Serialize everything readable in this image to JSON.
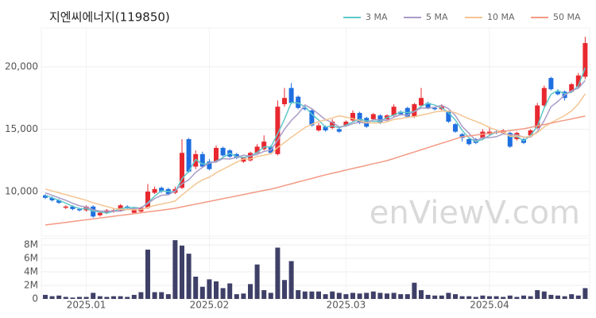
{
  "chart_data": [
    {
      "type": "candlestick",
      "title": "지엔씨에너지(119850)",
      "watermark": "enViewV.com",
      "up_color": "#e8282f",
      "down_color": "#1f6fe0",
      "grid": true,
      "ylim": [
        6430,
        23120
      ],
      "yticks": [
        {
          "value": 10000,
          "label": "10,000"
        },
        {
          "value": 15000,
          "label": "15,000"
        },
        {
          "value": 20000,
          "label": "20,000"
        }
      ],
      "open": [
        9700,
        9500,
        9300,
        8700,
        8800,
        8600,
        8500,
        8800,
        8100,
        8300,
        8400,
        8500,
        8800,
        8300,
        8400,
        8700,
        9900,
        10300,
        10200,
        9900,
        10300,
        14200,
        12000,
        13000,
        12400,
        12400,
        13500,
        13300,
        13000,
        12400,
        12500,
        13100,
        13400,
        13600,
        13000,
        17000,
        18300,
        17600,
        16700,
        16500,
        14900,
        15200,
        15100,
        15000,
        15300,
        15700,
        16300,
        15900,
        15800,
        16100,
        15800,
        16100,
        16400,
        16700,
        16000,
        16900,
        17100,
        16700,
        16600,
        16400,
        15400,
        14600,
        14200,
        14200,
        14300,
        14600,
        14800,
        14700,
        14700,
        14200,
        14200,
        14500,
        15100,
        16900,
        19100,
        18000,
        18000,
        18000,
        18400,
        19200
      ],
      "high": [
        9800,
        9600,
        9400,
        8900,
        8900,
        8700,
        8900,
        8900,
        8400,
        8600,
        8600,
        9000,
        8900,
        8700,
        8800,
        10600,
        10400,
        10400,
        10300,
        10400,
        14200,
        14300,
        13300,
        13200,
        12600,
        13700,
        13600,
        13400,
        13100,
        12800,
        13200,
        13800,
        14500,
        13700,
        17300,
        18300,
        18700,
        17700,
        16900,
        16600,
        15500,
        15300,
        15800,
        15100,
        15700,
        16500,
        16400,
        16000,
        16300,
        16200,
        16200,
        17000,
        16500,
        16800,
        17100,
        18300,
        17200,
        16800,
        17000,
        16500,
        15500,
        14700,
        14300,
        14300,
        15000,
        15200,
        14900,
        15000,
        14800,
        14800,
        14300,
        15000,
        17100,
        18500,
        19200,
        18200,
        18100,
        18700,
        19500,
        22400
      ],
      "low": [
        9400,
        9200,
        9000,
        8600,
        8500,
        8400,
        8400,
        7900,
        8000,
        8200,
        8300,
        8400,
        8600,
        8200,
        8300,
        8600,
        9800,
        9900,
        9700,
        9800,
        10200,
        11500,
        11800,
        11900,
        11700,
        12300,
        12800,
        12700,
        12600,
        12300,
        12400,
        13000,
        13300,
        13000,
        12900,
        16800,
        17000,
        16600,
        16500,
        15200,
        14800,
        14800,
        15000,
        14700,
        15200,
        15600,
        15400,
        15100,
        15700,
        15400,
        15700,
        16000,
        16100,
        15900,
        15900,
        16800,
        16600,
        16500,
        16500,
        15500,
        14700,
        14000,
        13700,
        13800,
        14200,
        14500,
        14600,
        14600,
        13500,
        14100,
        13800,
        14400,
        15000,
        16800,
        18100,
        17700,
        17300,
        17900,
        18300,
        19000
      ],
      "close": [
        9500,
        9300,
        9100,
        8800,
        8600,
        8500,
        8800,
        8000,
        8300,
        8500,
        8500,
        8900,
        8700,
        8600,
        8700,
        10000,
        10200,
        10000,
        9800,
        10200,
        13100,
        11600,
        13000,
        12000,
        11800,
        13500,
        12900,
        12800,
        12700,
        12700,
        13100,
        13600,
        14000,
        13100,
        16800,
        17500,
        17100,
        16700,
        16600,
        15300,
        15300,
        14900,
        15600,
        14800,
        15600,
        16300,
        15500,
        15200,
        16200,
        15500,
        16100,
        16800,
        16200,
        16000,
        17000,
        17500,
        16700,
        16600,
        16800,
        15600,
        14800,
        14300,
        13800,
        13900,
        14800,
        14800,
        14700,
        14900,
        13600,
        14700,
        13900,
        14900,
        16900,
        18300,
        18200,
        17800,
        17500,
        18600,
        19300,
        21900
      ],
      "series": [
        {
          "name": "3 MA",
          "color": "#5ec8c8",
          "values": [
            9700,
            9500,
            9300,
            9070,
            8830,
            8630,
            8630,
            8430,
            8370,
            8270,
            8430,
            8630,
            8700,
            8730,
            8670,
            9100,
            9630,
            10070,
            10000,
            10000,
            11030,
            11630,
            12570,
            12200,
            12270,
            12430,
            12730,
            13070,
            12800,
            12730,
            12830,
            13130,
            13570,
            13570,
            14630,
            15800,
            17130,
            17100,
            16800,
            16200,
            15730,
            15170,
            15270,
            15100,
            15330,
            15570,
            15800,
            15670,
            15630,
            15630,
            15930,
            16130,
            16370,
            16330,
            16400,
            16830,
            17070,
            16930,
            16700,
            16330,
            15730,
            14900,
            14300,
            14000,
            14170,
            14500,
            14770,
            14800,
            14400,
            14400,
            14070,
            14500,
            15230,
            16700,
            17800,
            18100,
            17830,
            17970,
            18470,
            19930
          ]
        },
        {
          "name": "5 MA",
          "color": "#a99bc8",
          "values": [
            9900,
            9700,
            9500,
            9300,
            9060,
            8860,
            8760,
            8540,
            8440,
            8420,
            8420,
            8440,
            8580,
            8640,
            8680,
            9040,
            9440,
            9700,
            9740,
            10040,
            10620,
            10940,
            11540,
            11940,
            12300,
            12380,
            12640,
            12600,
            12740,
            12920,
            12840,
            12980,
            13220,
            13320,
            14120,
            15000,
            15700,
            16240,
            16940,
            16640,
            16200,
            15760,
            15540,
            15180,
            15240,
            15440,
            15560,
            15480,
            15760,
            15740,
            15700,
            15960,
            16160,
            16120,
            16420,
            16700,
            16680,
            16760,
            16920,
            16640,
            16100,
            15220,
            14660,
            14080,
            14320,
            14320,
            14400,
            14620,
            14560,
            14540,
            14360,
            14360,
            14800,
            15680,
            16800,
            17220,
            17740,
            18080,
            18280,
            18900
          ]
        },
        {
          "name": "10 MA",
          "color": "#f4c592",
          "values": [
            10200,
            10050,
            9900,
            9750,
            9600,
            9450,
            9300,
            9100,
            8950,
            8800,
            8650,
            8580,
            8560,
            8540,
            8550,
            8730,
            8880,
            9000,
            9110,
            9240,
            9730,
            10160,
            10600,
            10940,
            11150,
            11500,
            11790,
            12070,
            12360,
            12610,
            12610,
            12810,
            12910,
            13030,
            13530,
            13930,
            14350,
            14740,
            15130,
            15390,
            15610,
            15740,
            15900,
            16070,
            15960,
            15840,
            15680,
            15530,
            15490,
            15510,
            15590,
            15780,
            15840,
            15960,
            16000,
            16120,
            16240,
            16380,
            16440,
            16450,
            16320,
            16070,
            15830,
            15620,
            15400,
            15130,
            14930,
            14760,
            14440,
            14450,
            14360,
            14420,
            14730,
            15170,
            15510,
            15810,
            16090,
            16460,
            17020,
            17830
          ]
        },
        {
          "name": "50 MA",
          "color": "#f39a84",
          "values": [
            7320,
            7390,
            7460,
            7530,
            7600,
            7670,
            7740,
            7810,
            7880,
            7950,
            8020,
            8090,
            8160,
            8230,
            8300,
            8370,
            8440,
            8510,
            8580,
            8660,
            8770,
            8880,
            8990,
            9100,
            9210,
            9320,
            9430,
            9540,
            9650,
            9760,
            9870,
            9980,
            10090,
            10190,
            10330,
            10480,
            10620,
            10770,
            10910,
            11050,
            11200,
            11340,
            11470,
            11590,
            11720,
            11850,
            11970,
            12100,
            12230,
            12350,
            12480,
            12650,
            12830,
            13000,
            13170,
            13350,
            13520,
            13700,
            13870,
            14040,
            14220,
            14390,
            14460,
            14530,
            14600,
            14670,
            14740,
            14820,
            14890,
            14960,
            15030,
            15140,
            15260,
            15370,
            15480,
            15600,
            15710,
            15820,
            15940,
            16050
          ]
        }
      ]
    },
    {
      "type": "bar",
      "color": "#3f4068",
      "grid": true,
      "ylim": [
        0,
        8950000
      ],
      "yticks": [
        0,
        {
          "value": 2000000,
          "label": "2M"
        },
        {
          "value": 4000000,
          "label": "4M"
        },
        {
          "value": 6000000,
          "label": "6M"
        },
        {
          "value": 8000000,
          "label": "8M"
        }
      ],
      "categories": [
        null,
        null,
        null,
        null,
        null,
        null,
        "2025.01",
        null,
        null,
        null,
        null,
        null,
        null,
        null,
        null,
        null,
        null,
        null,
        null,
        null,
        null,
        null,
        null,
        null,
        "2025.02",
        null,
        null,
        null,
        null,
        null,
        null,
        null,
        null,
        null,
        null,
        null,
        null,
        null,
        null,
        null,
        null,
        null,
        null,
        null,
        "2025.03",
        null,
        null,
        null,
        null,
        null,
        null,
        null,
        null,
        null,
        null,
        null,
        null,
        null,
        null,
        null,
        null,
        null,
        null,
        null,
        null,
        "2025.04",
        null,
        null,
        null,
        null,
        null,
        null,
        null,
        null,
        null,
        null,
        null,
        null,
        null,
        null
      ],
      "values": [
        600000,
        400000,
        500000,
        300000,
        200000,
        300000,
        300000,
        900000,
        400000,
        300000,
        400000,
        400000,
        300000,
        600000,
        1000000,
        7300000,
        1000000,
        1000000,
        700000,
        8700000,
        7900000,
        6700000,
        3300000,
        1800000,
        2900000,
        2600000,
        1600000,
        2300000,
        700000,
        800000,
        2200000,
        5100000,
        1300000,
        900000,
        7600000,
        2800000,
        5600000,
        1300000,
        1100000,
        1100000,
        1100000,
        700000,
        1100000,
        900000,
        700000,
        900000,
        800000,
        900000,
        1100000,
        900000,
        800000,
        900000,
        700000,
        700000,
        2400000,
        1300000,
        600000,
        500000,
        500000,
        900000,
        700000,
        400000,
        400000,
        300000,
        500000,
        400000,
        400000,
        300000,
        500000,
        300000,
        500000,
        400000,
        1300000,
        1100000,
        600000,
        500000,
        400000,
        700000,
        500000,
        1600000
      ]
    }
  ]
}
